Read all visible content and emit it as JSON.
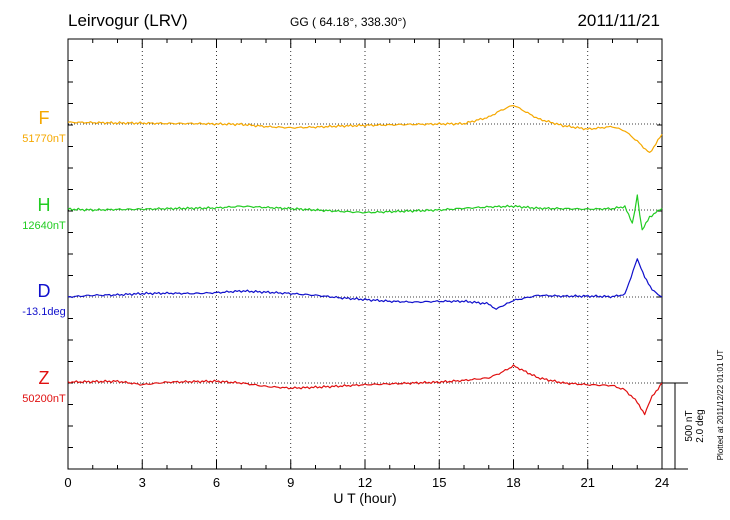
{
  "header": {
    "station": "Leirvogur (LRV)",
    "coords": "GG ( 64.18°, 338.30°)",
    "date": "2011/11/21"
  },
  "scale_bar": {
    "label_nt": "500 nT",
    "label_deg": "2.0 deg"
  },
  "plotted_note": "Plotted at 2011/12/22 01:01 UT",
  "chart_data": {
    "type": "line",
    "xlabel": "U T (hour)",
    "xlim": [
      0,
      24
    ],
    "xticks": [
      "0",
      "3",
      "6",
      "9",
      "12",
      "15",
      "18",
      "21",
      "24"
    ],
    "grid": true,
    "series": [
      {
        "name": "F",
        "baseline": "51770nT",
        "color": "#f5a800",
        "x": [
          0,
          1,
          2,
          3,
          4,
          5,
          6,
          7,
          8,
          9,
          10,
          11,
          12,
          13,
          14,
          15,
          16,
          17,
          17.5,
          18,
          19,
          20,
          21,
          22,
          22.5,
          23,
          23.5,
          24
        ],
        "values": [
          10,
          8,
          6,
          5,
          3,
          3,
          0,
          -2,
          -15,
          -22,
          -18,
          -12,
          -8,
          -5,
          -2,
          0,
          2,
          40,
          80,
          110,
          30,
          -10,
          -30,
          -15,
          -40,
          -100,
          -170,
          -60
        ]
      },
      {
        "name": "H",
        "baseline": "12640nT",
        "color": "#22cc22",
        "x": [
          0,
          1,
          2,
          3,
          4,
          5,
          6,
          7,
          8,
          9,
          10,
          11,
          12,
          13,
          14,
          15,
          16,
          17,
          18,
          19,
          20,
          21,
          22,
          22.5,
          22.8,
          23,
          23.2,
          23.5,
          24
        ],
        "values": [
          5,
          0,
          3,
          5,
          8,
          10,
          12,
          22,
          15,
          8,
          0,
          -8,
          -15,
          -10,
          -5,
          0,
          10,
          18,
          22,
          10,
          8,
          5,
          8,
          20,
          -80,
          80,
          -120,
          -40,
          10
        ]
      },
      {
        "name": "D",
        "baseline": "-13.1deg",
        "color": "#1010cc",
        "x": [
          0,
          1,
          2,
          3,
          4,
          5,
          6,
          7,
          8,
          9,
          10,
          11,
          12,
          13,
          14,
          15,
          16,
          17,
          17.3,
          18,
          19,
          20,
          21,
          22,
          22.5,
          23,
          23.3,
          23.6,
          24
        ],
        "values": [
          0,
          10,
          12,
          20,
          22,
          20,
          25,
          35,
          28,
          20,
          10,
          -5,
          -15,
          -25,
          -30,
          -25,
          -25,
          -40,
          -70,
          -20,
          10,
          5,
          5,
          2,
          15,
          220,
          120,
          40,
          0
        ]
      },
      {
        "name": "Z",
        "baseline": "50200nT",
        "color": "#e01010",
        "x": [
          0,
          1,
          2,
          3,
          4,
          5,
          6,
          7,
          8,
          9,
          10,
          11,
          12,
          13,
          14,
          15,
          16,
          17,
          17.5,
          18,
          19,
          20,
          21,
          22,
          22.5,
          23,
          23.3,
          23.6,
          24
        ],
        "values": [
          5,
          8,
          10,
          -10,
          5,
          8,
          10,
          0,
          -20,
          -30,
          -25,
          -18,
          -10,
          -5,
          0,
          5,
          15,
          30,
          60,
          100,
          30,
          0,
          -10,
          -15,
          -40,
          -110,
          -180,
          -80,
          0
        ]
      }
    ]
  }
}
